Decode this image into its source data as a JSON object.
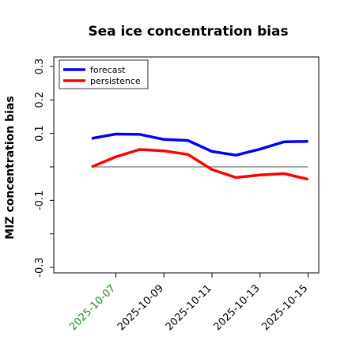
{
  "chart_data": {
    "type": "line",
    "title": "Sea ice concentration bias",
    "ylabel": "MIZ concentration bias",
    "xlabel": "",
    "ylim": [
      -0.3,
      0.3
    ],
    "yticks": [
      -0.3,
      -0.2,
      -0.1,
      0.0,
      0.1,
      0.2,
      0.3
    ],
    "ytick_labels": [
      "-0.3",
      "",
      "-0.1",
      "",
      "0.1",
      "0.2",
      "0.3"
    ],
    "x": [
      "2025-10-06",
      "2025-10-07",
      "2025-10-08",
      "2025-10-09",
      "2025-10-10",
      "2025-10-11",
      "2025-10-12",
      "2025-10-13",
      "2025-10-14",
      "2025-10-15"
    ],
    "xtick_labels": [
      "2025-10-07",
      "2025-10-09",
      "2025-10-11",
      "2025-10-13",
      "2025-10-15"
    ],
    "highlighted_xtick": "2025-10-07",
    "highlight_color": "#228B22",
    "reference_line_y": 0.0,
    "grid": false,
    "legend_position": "top-left",
    "series": [
      {
        "name": "forecast",
        "color": "#0000ff",
        "values": [
          0.085,
          0.098,
          0.097,
          0.082,
          0.079,
          0.046,
          0.035,
          0.053,
          0.075,
          0.076
        ]
      },
      {
        "name": "persistence",
        "color": "#ff0000",
        "values": [
          0.0,
          0.03,
          0.052,
          0.048,
          0.037,
          -0.008,
          -0.032,
          -0.024,
          -0.02,
          -0.037
        ]
      }
    ]
  }
}
